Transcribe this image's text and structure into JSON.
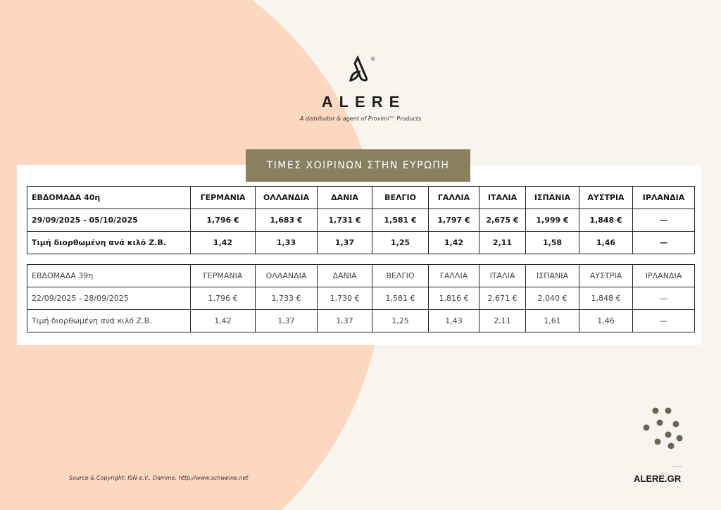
{
  "header": {
    "brand": "ALERE",
    "tagline": "A distributor & agent of Provimi™ Products",
    "registered": "®"
  },
  "banner": {
    "title": "ΤΙΜΕΣ ΧΟΙΡΙΝΩΝ ΣΤΗΝ ΕΥΡΩΠΗ"
  },
  "tables": [
    {
      "header": [
        "ΕΒΔΟΜΑΔΑ 40η",
        "ΓΕΡΜΑΝΙΑ",
        "ΟΛΛΑΝΔΙΑ",
        "ΔΑΝΙΑ",
        "ΒΕΛΓΙΟ",
        "ΓΑΛΛΙΑ",
        "ΙΤΑΛΙΑ",
        "ΙΣΠΑΝΙΑ",
        "ΑΥΣΤΡΙΑ",
        "ΙΡΛΑΝΔΙΑ"
      ],
      "rows": [
        [
          "29/09/2025 - 05/10/2025",
          "1,796 €",
          "1,683 €",
          "1,731 €",
          "1,581 €",
          "1,797 €",
          "2,675 €",
          "1,999 €",
          "1,848 €",
          "—"
        ],
        [
          "Τιμή διορθωμένη ανά κιλό Ζ.Β.",
          "1,42",
          "1,33",
          "1,37",
          "1,25",
          "1,42",
          "2,11",
          "1,58",
          "1,46",
          "—"
        ]
      ]
    },
    {
      "header": [
        "ΕΒΔΟΜΑΔΑ 39η",
        "ΓΕΡΜΑΝΙΑ",
        "ΟΛΛΑΝΔΙΑ",
        "ΔΑΝΙΑ",
        "ΒΕΛΓΙΟ",
        "ΓΑΛΛΙΑ",
        "ΙΤΑΛΙΑ",
        "ΙΣΠΑΝΙΑ",
        "ΑΥΣΤΡΙΑ",
        "ΙΡΛΑΝΔΙΑ"
      ],
      "rows": [
        [
          "22/09/2025 - 28/09/2025",
          "1,796 €",
          "1,733 €",
          "1,730 €",
          "1,581 €",
          "1,816 €",
          "2,671 €",
          "2,040 €",
          "1,848 €",
          "—"
        ],
        [
          "Τιμή διορθωμένη ανά κιλό Ζ.Β.",
          "1,42",
          "1,37",
          "1,37",
          "1,25",
          "1,43",
          "2,11",
          "1,61",
          "1,46",
          "—"
        ]
      ]
    }
  ],
  "footer": {
    "source": "Source & Copyright: ISN e.V., Damme, http://www.schweine.net",
    "site": "ALERE.GR"
  },
  "colors": {
    "accent": "#8a8060",
    "peach": "#fdd8c0",
    "background": "#f8f5ee",
    "dots": "#6e6450"
  }
}
